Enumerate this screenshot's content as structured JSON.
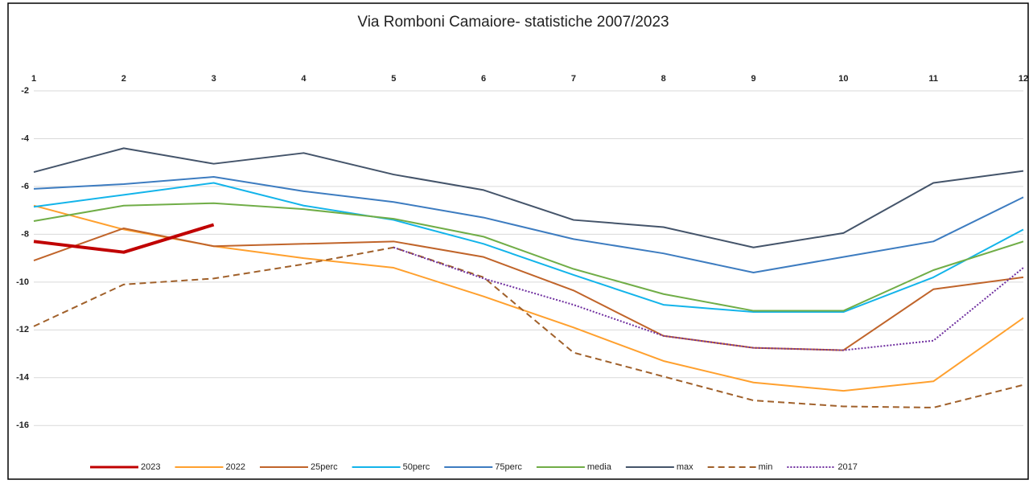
{
  "chart_data": {
    "type": "line",
    "title": "Via Romboni Camaiore- statistiche 2007/2023",
    "x": [
      1,
      2,
      3,
      4,
      5,
      6,
      7,
      8,
      9,
      10,
      11,
      12
    ],
    "xlim": [
      1,
      12
    ],
    "xticks": [
      1,
      2,
      3,
      4,
      5,
      6,
      7,
      8,
      9,
      10,
      11,
      12
    ],
    "x_axis_position": "top",
    "ylim": [
      -17,
      -2
    ],
    "yticks": [
      -2,
      -4,
      -6,
      -8,
      -10,
      -12,
      -14,
      -16
    ],
    "grid": true,
    "legend": "bottom",
    "series": [
      {
        "name": "2023",
        "color": "#c00000",
        "width": 4,
        "dash": "solid",
        "values": [
          -8.3,
          -8.75,
          -7.6,
          null,
          null,
          null,
          null,
          null,
          null,
          null,
          null,
          null
        ]
      },
      {
        "name": "2022",
        "color": "#ffa02e",
        "width": 2,
        "dash": "solid",
        "values": [
          -6.8,
          -7.8,
          -8.5,
          -9.0,
          -9.4,
          -10.6,
          -11.9,
          -13.3,
          -14.2,
          -14.55,
          -14.15,
          -11.5
        ]
      },
      {
        "name": "25perc",
        "color": "#c0642a",
        "width": 2,
        "dash": "solid",
        "values": [
          -9.1,
          -7.75,
          -8.5,
          -8.4,
          -8.3,
          -8.95,
          -10.35,
          -12.25,
          -12.75,
          -12.85,
          -10.3,
          -9.8
        ]
      },
      {
        "name": "50perc",
        "color": "#13b4ea",
        "width": 2,
        "dash": "solid",
        "values": [
          -6.85,
          -6.35,
          -5.85,
          -6.8,
          -7.4,
          -8.4,
          -9.7,
          -10.95,
          -11.25,
          -11.25,
          -9.8,
          -7.8
        ]
      },
      {
        "name": "75perc",
        "color": "#3d7cc0",
        "width": 2,
        "dash": "solid",
        "values": [
          -6.1,
          -5.9,
          -5.6,
          -6.2,
          -6.65,
          -7.3,
          -8.2,
          -8.8,
          -9.6,
          -8.95,
          -8.3,
          -6.45
        ]
      },
      {
        "name": "media",
        "color": "#70ad47",
        "width": 2,
        "dash": "solid",
        "values": [
          -7.45,
          -6.8,
          -6.7,
          -6.95,
          -7.35,
          -8.1,
          -9.45,
          -10.5,
          -11.2,
          -11.2,
          -9.5,
          -8.3
        ]
      },
      {
        "name": "max",
        "color": "#44546a",
        "width": 2,
        "dash": "solid",
        "values": [
          -5.4,
          -4.4,
          -5.05,
          -4.6,
          -5.5,
          -6.15,
          -7.4,
          -7.7,
          -8.55,
          -7.95,
          -5.85,
          -5.35
        ]
      },
      {
        "name": "min",
        "color": "#a0602a",
        "width": 2,
        "dash": "dash",
        "values": [
          -11.85,
          -10.1,
          -9.85,
          -9.25,
          -8.55,
          -9.8,
          -12.95,
          -13.95,
          -14.95,
          -15.2,
          -15.25,
          -14.3
        ]
      },
      {
        "name": "2017",
        "color": "#7030a0",
        "width": 2,
        "dash": "dot",
        "values": [
          null,
          null,
          null,
          null,
          -8.55,
          -9.85,
          -10.95,
          -12.25,
          -12.75,
          -12.85,
          -12.45,
          -9.4
        ]
      }
    ]
  }
}
